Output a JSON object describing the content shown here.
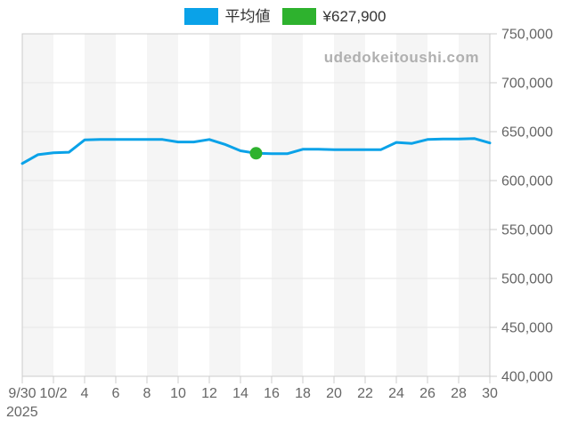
{
  "page": {
    "background": "#ffffff"
  },
  "legend": {
    "items": [
      {
        "label": "平均値",
        "color": "#0aa2e8"
      },
      {
        "label": "¥627,900",
        "color": "#2eb22e"
      }
    ]
  },
  "watermark": "udedokeitoushi.com",
  "chart_data": {
    "type": "line",
    "title": "",
    "xlabel": "",
    "ylabel": "",
    "x_year_label": "2025",
    "xtick_labels": [
      "9/30",
      "10/2",
      "4",
      "6",
      "8",
      "10",
      "12",
      "14",
      "16",
      "18",
      "20",
      "22",
      "24",
      "26",
      "28",
      "30"
    ],
    "ytick_labels": [
      "750,000",
      "700,000",
      "650,000",
      "600,000",
      "550,000",
      "500,000",
      "450,000",
      "400,000"
    ],
    "ylim": [
      400000,
      750000
    ],
    "ytick_step": 50000,
    "grid": true,
    "legend_position": "top",
    "series": [
      {
        "name": "平均値",
        "color": "#0aa2e8",
        "dates": [
          "9/30",
          "10/1",
          "10/2",
          "10/3",
          "10/4",
          "10/5",
          "10/6",
          "10/7",
          "10/8",
          "10/9",
          "10/10",
          "10/11",
          "10/12",
          "10/13",
          "10/14",
          "10/15",
          "10/16",
          "10/17",
          "10/18",
          "10/19",
          "10/20",
          "10/21",
          "10/22",
          "10/23",
          "10/24",
          "10/25",
          "10/26",
          "10/27",
          "10/28",
          "10/29",
          "10/30"
        ],
        "values": [
          617500,
          626500,
          628500,
          629000,
          641500,
          642000,
          642000,
          642000,
          642000,
          642000,
          639500,
          639500,
          642000,
          637000,
          630500,
          627900,
          627500,
          627500,
          632000,
          632000,
          631500,
          631500,
          631500,
          631500,
          639000,
          638000,
          642000,
          642500,
          642500,
          643000,
          638500
        ]
      }
    ],
    "highlight_point": {
      "date": "10/15",
      "index": 15,
      "value": 627900,
      "label": "¥627,900",
      "color": "#2eb22e"
    },
    "colors": {
      "band_fill": "#f5f5f5",
      "axis_line": "#cccccc",
      "grid_line": "#e6e6e6",
      "tick_label": "#666666"
    }
  }
}
